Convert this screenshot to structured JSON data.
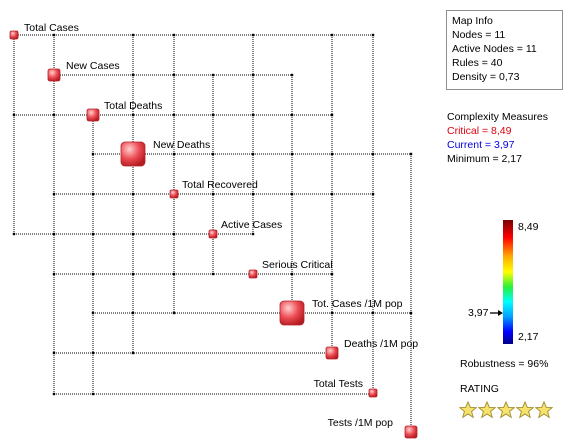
{
  "map_info": {
    "title": "Map Info",
    "nodes": "Nodes = 11",
    "active_nodes": "Active Nodes = 11",
    "rules": "Rules = 40",
    "density": "Density = 0,73"
  },
  "complexity": {
    "title": "Complexity Measures",
    "critical": "Critical = 8,49",
    "current": "Current = 3,97",
    "minimum": "Minimum = 2,17"
  },
  "scale": {
    "max_label": "8,49",
    "current_label": "3,97",
    "min_label": "2,17",
    "max": 8.49,
    "current": 3.97,
    "min": 2.17
  },
  "robustness": "Robustness = 96%",
  "rating": {
    "label": "RATING",
    "stars": 5
  },
  "nodes": [
    {
      "label": "Total Cases",
      "weight": 1
    },
    {
      "label": "New Cases",
      "weight": 2
    },
    {
      "label": "Total Deaths",
      "weight": 2
    },
    {
      "label": "New Deaths",
      "weight": 4
    },
    {
      "label": "Total Recovered",
      "weight": 1
    },
    {
      "label": "Active Cases",
      "weight": 1
    },
    {
      "label": "Serious Critical",
      "weight": 1
    },
    {
      "label": "Tot. Cases /1M pop",
      "weight": 4
    },
    {
      "label": "Deaths /1M pop",
      "weight": 2
    },
    {
      "label": "Total Tests",
      "weight": 1
    },
    {
      "label": "Tests /1M pop",
      "weight": 2
    }
  ],
  "colors": {
    "node": "#e8464d",
    "node_light": "#ffb4b4",
    "node_dark": "#b01820",
    "edge": "#000000",
    "star": "#f6e26e",
    "star_stroke": "#a08a2a"
  }
}
